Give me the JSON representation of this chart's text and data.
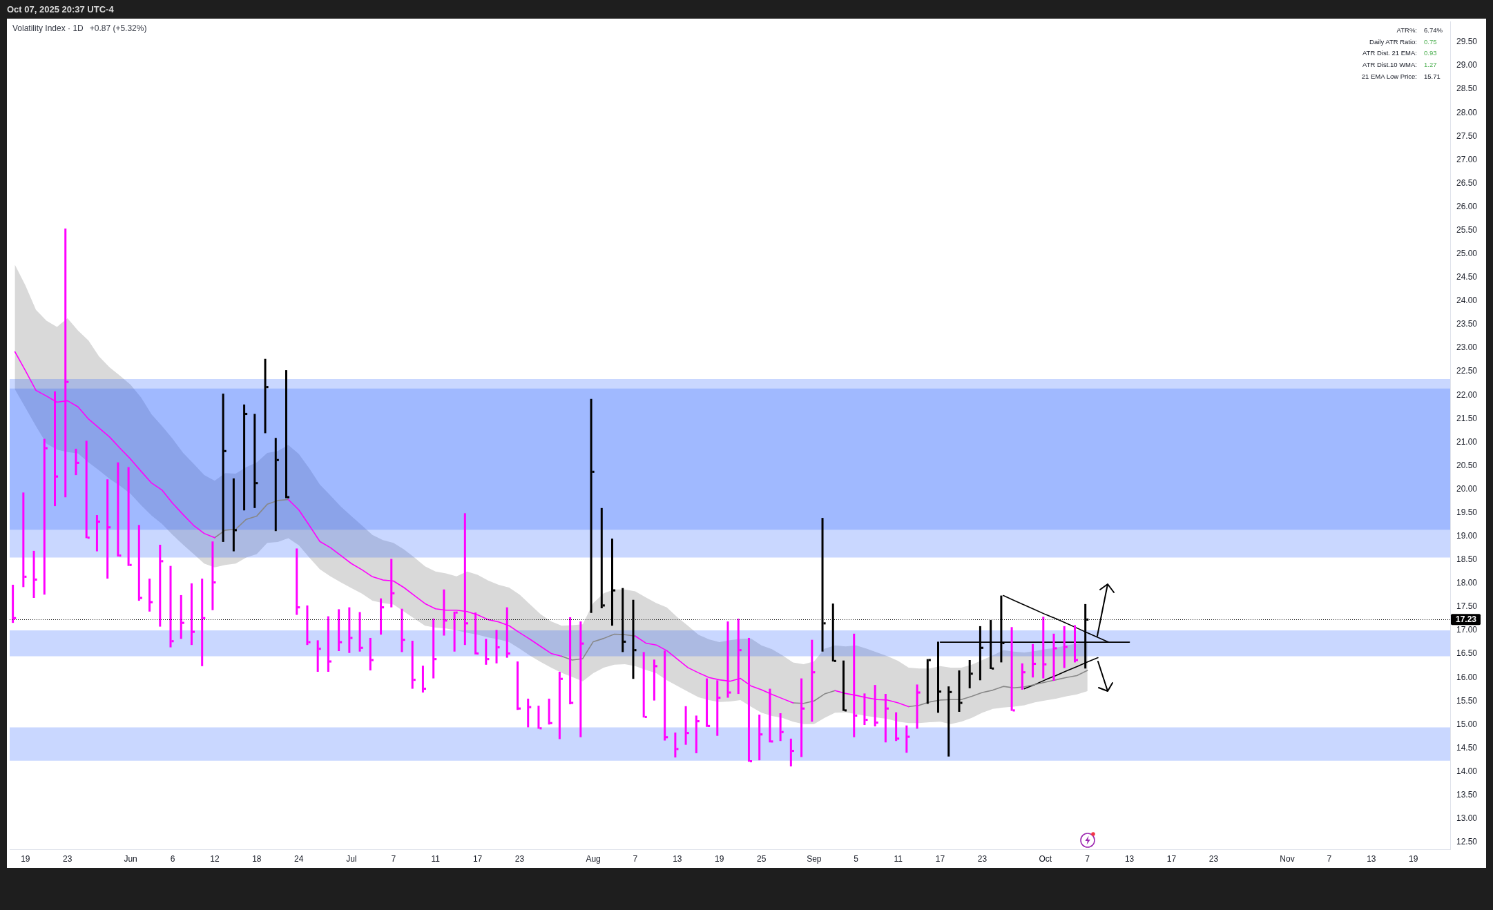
{
  "chart_data": {
    "type": "bar",
    "title": "Volatility Index · 1D",
    "subtitle": "+0.87 (+5.32%)",
    "annotations": [
      "Oct 07, 2025 20:37 UTC-4",
      "ATR%:",
      "6.74%",
      "Daily ATR Ratio:",
      "0.75",
      "ATR Dist. 21 EMA:",
      "0.93",
      "ATR Dist.10 WMA:",
      "1.27",
      "21 EMA Low Price:",
      "15.71"
    ],
    "categories": [
      null,
      "19",
      null,
      null,
      null,
      "23",
      null,
      null,
      null,
      null,
      null,
      "Jun",
      null,
      null,
      null,
      "6",
      null,
      null,
      null,
      "12",
      null,
      null,
      null,
      "18",
      null,
      null,
      null,
      "24",
      null,
      null,
      null,
      null,
      "Jul",
      null,
      null,
      null,
      "7",
      null,
      null,
      null,
      "11",
      null,
      null,
      null,
      "17",
      null,
      null,
      null,
      "23",
      null,
      null,
      null,
      null,
      null,
      null,
      "Aug",
      null,
      null,
      null,
      "7",
      null,
      null,
      null,
      "13",
      null,
      null,
      null,
      "19",
      null,
      null,
      null,
      "25",
      null,
      null,
      null,
      null,
      "Sep",
      null,
      null,
      null,
      "5",
      null,
      null,
      null,
      "11",
      null,
      null,
      null,
      "17",
      null,
      null,
      null,
      "23",
      null,
      null,
      null,
      null,
      null,
      "Oct",
      null,
      null,
      null,
      "7",
      null,
      null,
      null,
      "13",
      null,
      null,
      null,
      "17",
      null,
      null,
      null,
      "23",
      null,
      null,
      null,
      null,
      null,
      null,
      "Nov",
      null,
      null,
      null,
      "7",
      null,
      null,
      null,
      "13",
      null,
      null,
      null,
      "19",
      null,
      null,
      null
    ],
    "series": [
      {
        "colors": [
          "#ff00ff",
          "#ff00ff",
          "#ff00ff",
          "#ff00ff",
          "#ff00ff",
          "#ff00ff",
          "#ff00ff",
          "#ff00ff",
          "#ff00ff",
          "#ff00ff",
          "#ff00ff",
          "#ff00ff",
          "#ff00ff",
          "#ff00ff",
          "#ff00ff",
          "#ff00ff",
          "#ff00ff",
          "#ff00ff",
          "#ff00ff",
          "#ff00ff",
          "#000000",
          "#000000",
          "#000000",
          "#000000",
          "#000000",
          "#000000",
          "#000000",
          "#ff00ff",
          "#ff00ff",
          "#ff00ff",
          "#ff00ff",
          "#ff00ff",
          "#ff00ff",
          "#ff00ff",
          "#ff00ff",
          "#ff00ff",
          "#ff00ff",
          "#ff00ff",
          "#ff00ff",
          "#ff00ff",
          "#ff00ff",
          "#ff00ff",
          "#ff00ff",
          "#ff00ff",
          "#ff00ff",
          "#ff00ff",
          "#ff00ff",
          "#ff00ff",
          "#ff00ff",
          "#ff00ff",
          "#ff00ff",
          "#ff00ff",
          "#ff00ff",
          "#ff00ff",
          "#ff00ff",
          "#000000",
          "#000000",
          "#000000",
          "#000000",
          "#000000",
          "#ff00ff",
          "#ff00ff",
          "#ff00ff",
          "#ff00ff",
          "#ff00ff",
          "#ff00ff",
          "#ff00ff",
          "#ff00ff",
          "#ff00ff",
          "#ff00ff",
          "#ff00ff",
          "#ff00ff",
          "#ff00ff",
          "#ff00ff",
          "#ff00ff",
          "#ff00ff",
          "#ff00ff",
          "#000000",
          "#000000",
          "#000000",
          "#ff00ff",
          "#ff00ff",
          "#ff00ff",
          "#ff00ff",
          "#ff00ff",
          "#ff00ff",
          "#ff00ff",
          "#000000",
          "#000000",
          "#000000",
          "#000000",
          "#000000",
          "#000000",
          "#000000",
          "#000000",
          "#ff00ff",
          "#ff00ff",
          "#ff00ff",
          "#ff00ff",
          "#ff00ff",
          "#ff00ff",
          "#ff00ff",
          "#000000",
          null,
          null,
          null,
          null,
          null,
          null,
          null,
          null,
          null,
          null,
          null,
          null,
          null,
          null,
          null,
          null,
          null,
          null,
          null,
          null,
          null,
          null,
          null,
          null,
          null,
          null,
          null,
          null,
          null,
          null,
          null,
          null,
          null,
          null
        ],
        "base": [
          17.16,
          17.92,
          17.69,
          17.76,
          19.64,
          19.83,
          20.3,
          18.96,
          18.68,
          18.1,
          18.57,
          18.37,
          17.63,
          17.4,
          17.08,
          16.64,
          16.82,
          16.69,
          16.24,
          17.43,
          18.88,
          18.68,
          19.55,
          19.6,
          21.19,
          19.11,
          19.81,
          17.33,
          16.69,
          16.12,
          16.12,
          16.56,
          16.52,
          16.55,
          16.15,
          16.91,
          17.49,
          16.54,
          15.76,
          15.68,
          15.98,
          16.89,
          16.55,
          16.69,
          16.49,
          16.27,
          16.3,
          16.42,
          15.31,
          14.94,
          14.91,
          15.0,
          14.69,
          15.43,
          14.73,
          17.37,
          17.47,
          17.1,
          16.54,
          15.97,
          15.15,
          15.51,
          14.66,
          14.3,
          14.57,
          14.39,
          14.95,
          14.76,
          15.57,
          15.65,
          14.21,
          14.24,
          14.62,
          14.65,
          14.11,
          14.31,
          15.06,
          16.55,
          16.34,
          15.29,
          14.73,
          14.99,
          14.96,
          14.62,
          14.65,
          14.4,
          14.91,
          15.44,
          15.25,
          14.32,
          15.27,
          15.77,
          15.94,
          16.18,
          16.32,
          15.29,
          15.74,
          16.0,
          15.98,
          15.93,
          16.2,
          16.32,
          16.19,
          null,
          null,
          null,
          null,
          null,
          null,
          null,
          null,
          null,
          null,
          null,
          null,
          null,
          null,
          null,
          null,
          null,
          null,
          null,
          null,
          null,
          null,
          null,
          null,
          null,
          null,
          null,
          null,
          null,
          null,
          null,
          null,
          null,
          null
        ],
        "values": [
          0.81,
          2.01,
          1.0,
          3.31,
          2.44,
          5.71,
          0.56,
          2.07,
          0.77,
          2.11,
          2.0,
          2.1,
          1.61,
          0.7,
          1.74,
          1.73,
          0.93,
          1.31,
          1.86,
          1.46,
          3.15,
          1.55,
          2.25,
          2.0,
          1.58,
          1.98,
          2.72,
          1.41,
          0.84,
          0.67,
          1.18,
          0.89,
          0.97,
          0.84,
          0.69,
          0.77,
          1.03,
          0.92,
          1.02,
          0.57,
          1.27,
          0.98,
          0.85,
          2.8,
          0.89,
          0.55,
          0.71,
          1.07,
          1.03,
          0.61,
          0.49,
          0.55,
          1.43,
          1.85,
          2.46,
          4.55,
          2.13,
          1.85,
          1.36,
          1.68,
          1.39,
          0.87,
          1.91,
          0.53,
          0.82,
          0.8,
          1.03,
          1.18,
          1.62,
          1.6,
          2.63,
          0.97,
          1.14,
          0.59,
          0.59,
          1.67,
          1.74,
          2.84,
          1.23,
          1.07,
          2.2,
          0.67,
          0.88,
          1.03,
          0.61,
          0.58,
          0.94,
          0.95,
          1.51,
          1.49,
          0.88,
          0.6,
          1.15,
          1.04,
          1.42,
          1.78,
          0.56,
          0.71,
          1.31,
          1.0,
          0.89,
          0.79,
          1.37,
          null,
          null,
          null,
          null,
          null,
          null,
          null,
          null,
          null,
          null,
          null,
          null,
          null,
          null,
          null,
          null,
          null,
          null,
          null,
          null,
          null,
          null,
          null,
          null,
          null,
          null,
          null,
          null,
          null,
          null,
          null,
          null,
          null,
          null
        ]
      },
      {
        "type": "scatter",
        "marker": "square",
        "color": "#ff00ff",
        "values": [
          17.26,
          18.14,
          18.08,
          20.87,
          20.27,
          22.28,
          20.56,
          18.97,
          19.31,
          19.19,
          18.59,
          18.39,
          17.69,
          17.6,
          18.47,
          16.77,
          17.16,
          16.97,
          17.26,
          18.02,
          null,
          null,
          null,
          null,
          null,
          null,
          null,
          17.49,
          16.75,
          16.61,
          16.34,
          16.75,
          16.84,
          16.63,
          16.37,
          17.49,
          17.79,
          16.8,
          15.95,
          15.76,
          16.39,
          17.21,
          17.38,
          17.15,
          16.51,
          16.39,
          16.64,
          16.51,
          15.34,
          15.37,
          14.92,
          15.03,
          15.97,
          15.46,
          16.72,
          null,
          null,
          null,
          null,
          null,
          15.16,
          16.24,
          14.73,
          14.48,
          14.82,
          15.07,
          14.97,
          15.57,
          15.68,
          16.58,
          14.22,
          14.79,
          14.64,
          14.84,
          14.44,
          15.34,
          16.11,
          null,
          null,
          null,
          15.19,
          15.1,
          15.04,
          15.34,
          14.7,
          14.74,
          15.68,
          null,
          null,
          null,
          null,
          null,
          null,
          null,
          null,
          15.3,
          16.11,
          16.29,
          16.28,
          16.62,
          16.65,
          16.37,
          null,
          null,
          null,
          null,
          null,
          null,
          null,
          null,
          null,
          null,
          null,
          null,
          null,
          null,
          null,
          null,
          null,
          null,
          null,
          null,
          null,
          null,
          null,
          null,
          null,
          null,
          null,
          null,
          null,
          null,
          null,
          null,
          null,
          null,
          null
        ]
      },
      {
        "type": "scatter",
        "marker": "square",
        "color": "#000000",
        "values": [
          null,
          null,
          null,
          null,
          null,
          null,
          null,
          null,
          null,
          null,
          null,
          null,
          null,
          null,
          null,
          null,
          null,
          null,
          null,
          null,
          20.81,
          19.13,
          21.6,
          20.13,
          22.17,
          20.62,
          19.83,
          null,
          null,
          null,
          null,
          null,
          null,
          null,
          null,
          null,
          null,
          null,
          null,
          null,
          null,
          null,
          null,
          null,
          null,
          null,
          null,
          null,
          null,
          null,
          null,
          null,
          null,
          null,
          null,
          20.37,
          17.53,
          17.85,
          16.76,
          16.58,
          null,
          null,
          null,
          null,
          null,
          null,
          null,
          null,
          null,
          null,
          null,
          null,
          null,
          null,
          null,
          null,
          null,
          17.15,
          16.35,
          15.3,
          null,
          null,
          null,
          null,
          null,
          null,
          null,
          16.37,
          15.7,
          15.69,
          15.46,
          16.08,
          16.63,
          16.19,
          16.73,
          null,
          null,
          null,
          null,
          null,
          null,
          null,
          17.23,
          null,
          null,
          null,
          null,
          null,
          null,
          null,
          null,
          null,
          null,
          null,
          null,
          null,
          null,
          null,
          null,
          null,
          null,
          null,
          null,
          null,
          null,
          null,
          null,
          null,
          null,
          null,
          null,
          null,
          null,
          null,
          null,
          null,
          null
        ]
      },
      {
        "type": "line",
        "color": "#ff00ff",
        "values": [
          22.92,
          22.52,
          22.1,
          21.98,
          21.85,
          21.88,
          21.75,
          21.49,
          21.3,
          21.11,
          20.87,
          20.64,
          20.38,
          20.13,
          19.98,
          19.7,
          19.46,
          19.23,
          19.06,
          18.97,
          null,
          null,
          null,
          null,
          null,
          null,
          19.78,
          19.56,
          19.23,
          18.89,
          18.76,
          18.59,
          18.42,
          18.29,
          18.14,
          18.07,
          18.05,
          17.91,
          17.74,
          17.57,
          17.46,
          17.43,
          17.43,
          17.4,
          17.33,
          17.23,
          17.18,
          17.1,
          16.95,
          16.81,
          16.66,
          16.51,
          16.45,
          null,
          null,
          null,
          null,
          null,
          null,
          16.88,
          16.73,
          16.69,
          16.57,
          16.39,
          16.21,
          16.1,
          16.0,
          15.95,
          15.92,
          15.98,
          15.82,
          15.74,
          15.64,
          15.55,
          15.46,
          null,
          null,
          null,
          15.72,
          15.66,
          15.62,
          15.57,
          15.53,
          15.52,
          15.46,
          15.38,
          null,
          null,
          null,
          null,
          null,
          null,
          null,
          null,
          null,
          null,
          null,
          null,
          null,
          null,
          null,
          null,
          null,
          null,
          null,
          null,
          null,
          null,
          null,
          null,
          null,
          null,
          null,
          null,
          null,
          null,
          null,
          null,
          null,
          null,
          null,
          null,
          null,
          null,
          null,
          null,
          null,
          null,
          null,
          null,
          null,
          null,
          null,
          null,
          null,
          null,
          null
        ],
        "lower": [
          22.12,
          21.73,
          21.34,
          20.97,
          20.84,
          20.79,
          20.76,
          20.57,
          20.4,
          20.22,
          20.07,
          19.9,
          19.66,
          19.44,
          19.26,
          19.03,
          18.82,
          18.62,
          18.42,
          18.34,
          18.39,
          18.42,
          18.55,
          18.62,
          18.86,
          18.88,
          18.96,
          18.81,
          18.55,
          18.3,
          18.15,
          18.02,
          17.9,
          17.78,
          17.63,
          17.58,
          17.55,
          17.4,
          17.25,
          17.1,
          17.06,
          17.04,
          17.0,
          16.95,
          16.91,
          16.85,
          16.81,
          16.75,
          16.61,
          16.46,
          16.33,
          16.21,
          16.1,
          16.01,
          15.92,
          16.09,
          16.21,
          16.27,
          16.28,
          16.24,
          16.16,
          16.09,
          15.94,
          15.82,
          15.7,
          15.58,
          15.52,
          15.48,
          15.49,
          15.52,
          15.38,
          15.25,
          15.18,
          15.14,
          15.06,
          15.01,
          15.01,
          15.14,
          15.25,
          15.26,
          15.22,
          15.18,
          15.15,
          15.12,
          15.06,
          15.03,
          15.03,
          15.05,
          15.06,
          15.01,
          15.06,
          15.14,
          15.25,
          15.33,
          15.36,
          15.38,
          15.41,
          15.47,
          15.51,
          15.55,
          15.6,
          15.64,
          15.71,
          null,
          null,
          null,
          null,
          null,
          null,
          null,
          null,
          null,
          null,
          null,
          null,
          null,
          null,
          null,
          null,
          null,
          null,
          null,
          null,
          null,
          null,
          null,
          null,
          null,
          null,
          null,
          null,
          null,
          null,
          null,
          null,
          null,
          null
        ],
        "upper": [
          24.77,
          24.33,
          23.81,
          23.58,
          23.45,
          23.63,
          23.37,
          23.16,
          22.82,
          22.59,
          22.41,
          22.22,
          21.95,
          21.59,
          21.34,
          21.07,
          20.77,
          20.54,
          20.3,
          20.18,
          20.34,
          20.33,
          20.47,
          20.57,
          20.77,
          20.81,
          20.94,
          20.75,
          20.44,
          20.1,
          19.87,
          19.63,
          19.43,
          19.23,
          19.03,
          18.92,
          18.86,
          18.72,
          18.55,
          18.36,
          18.25,
          18.21,
          18.15,
          18.25,
          18.18,
          18.06,
          17.97,
          17.91,
          17.76,
          17.55,
          17.34,
          17.19,
          17.1,
          17.11,
          17.13,
          17.58,
          17.79,
          17.87,
          17.87,
          17.83,
          17.7,
          17.58,
          17.49,
          17.28,
          17.1,
          16.91,
          16.81,
          16.75,
          16.79,
          16.82,
          16.83,
          16.68,
          16.6,
          16.47,
          16.32,
          16.28,
          16.34,
          16.61,
          16.68,
          16.66,
          16.68,
          16.61,
          16.53,
          16.45,
          16.35,
          16.21,
          16.19,
          16.19,
          16.24,
          16.21,
          16.21,
          16.27,
          16.37,
          16.47,
          16.58,
          16.55,
          16.53,
          16.56,
          16.6,
          16.63,
          16.68,
          16.72,
          16.77,
          null,
          null,
          null,
          null,
          null,
          null,
          null,
          null,
          null,
          null,
          null,
          null,
          null,
          null,
          null,
          null,
          null,
          null,
          null,
          null,
          null,
          null,
          null,
          null,
          null,
          null,
          null,
          null,
          null,
          null,
          null,
          null,
          null,
          null
        ]
      },
      {
        "type": "line",
        "color": "#888888",
        "values": [
          null,
          null,
          null,
          null,
          null,
          null,
          null,
          null,
          null,
          null,
          null,
          null,
          null,
          null,
          null,
          null,
          null,
          null,
          null,
          18.97,
          19.13,
          19.15,
          19.36,
          19.43,
          19.68,
          19.76,
          19.78,
          null,
          null,
          null,
          null,
          null,
          null,
          null,
          null,
          null,
          null,
          null,
          null,
          null,
          null,
          null,
          null,
          null,
          null,
          null,
          null,
          null,
          null,
          null,
          null,
          null,
          16.45,
          16.37,
          16.4,
          16.76,
          16.83,
          16.92,
          16.91,
          16.88,
          null,
          null,
          null,
          null,
          null,
          null,
          null,
          null,
          null,
          null,
          null,
          null,
          null,
          null,
          15.46,
          15.45,
          15.5,
          15.65,
          15.72,
          null,
          null,
          null,
          null,
          null,
          null,
          15.38,
          15.41,
          15.48,
          15.52,
          15.53,
          15.53,
          15.6,
          15.68,
          15.73,
          15.81,
          15.78,
          15.8,
          15.85,
          15.9,
          15.95,
          16.0,
          16.04,
          16.15,
          null,
          null,
          null,
          null,
          null,
          null,
          null,
          null,
          null,
          null,
          null,
          null,
          null,
          null,
          null,
          null,
          null,
          null,
          null,
          null,
          null,
          null,
          null,
          null,
          null,
          null,
          null,
          null,
          null,
          null,
          null,
          null,
          null,
          null
        ]
      },
      {
        "type": "line",
        "color": "#000000",
        "values": [
          null,
          null,
          null,
          null,
          null,
          null,
          null,
          null,
          null,
          null,
          null,
          null,
          null,
          null,
          null,
          null,
          null,
          null,
          null,
          null,
          null,
          null,
          null,
          null,
          null,
          null,
          null,
          null,
          null,
          null,
          null,
          null,
          null,
          null,
          null,
          null,
          null,
          null,
          null,
          null,
          null,
          null,
          null,
          null,
          null,
          null,
          null,
          null,
          null,
          null,
          null,
          null,
          null,
          null,
          null,
          null,
          null,
          null,
          null,
          null,
          null,
          null,
          null,
          null,
          null,
          null,
          null,
          null,
          null,
          null,
          null,
          null,
          null,
          null,
          null,
          null,
          null,
          null,
          null,
          null,
          null,
          null,
          null,
          null,
          null,
          null,
          null,
          null,
          null,
          null,
          null,
          null,
          null,
          null,
          17.74,
          17.64,
          17.54,
          17.44,
          17.34,
          17.25,
          17.15,
          17.05,
          16.95,
          16.85,
          16.75,
          null,
          null,
          null,
          null,
          null,
          null,
          null,
          null,
          null,
          null,
          null,
          null,
          null,
          null,
          null,
          null,
          null,
          null,
          null,
          null,
          null,
          null,
          null,
          null,
          null,
          null,
          null,
          null,
          null,
          null,
          null,
          null
        ]
      },
      {
        "type": "line",
        "color": "#000000",
        "values": [
          null,
          null,
          null,
          null,
          null,
          null,
          null,
          null,
          null,
          null,
          null,
          null,
          null,
          null,
          null,
          null,
          null,
          null,
          null,
          null,
          null,
          null,
          null,
          null,
          null,
          null,
          null,
          null,
          null,
          null,
          null,
          null,
          null,
          null,
          null,
          null,
          null,
          null,
          null,
          null,
          null,
          null,
          null,
          null,
          null,
          null,
          null,
          null,
          null,
          null,
          null,
          null,
          null,
          null,
          null,
          null,
          null,
          null,
          null,
          null,
          null,
          null,
          null,
          null,
          null,
          null,
          null,
          null,
          null,
          null,
          null,
          null,
          null,
          null,
          null,
          null,
          null,
          null,
          null,
          null,
          null,
          null,
          null,
          null,
          null,
          null,
          null,
          null,
          16.75,
          16.75,
          16.75,
          16.75,
          16.75,
          16.75,
          16.75,
          16.75,
          16.75,
          16.75,
          16.75,
          16.75,
          16.75,
          16.75,
          16.75,
          16.75,
          16.75,
          16.75,
          16.75,
          null,
          null,
          null,
          null,
          null,
          null,
          null,
          null,
          null,
          null,
          null,
          null,
          null,
          null,
          null,
          null,
          null,
          null,
          null,
          null,
          null,
          null,
          null,
          null,
          null,
          null,
          null,
          null,
          null,
          null
        ]
      },
      {
        "type": "line",
        "color": "#000000",
        "values": [
          null,
          null,
          null,
          null,
          null,
          null,
          null,
          null,
          null,
          null,
          null,
          null,
          null,
          null,
          null,
          null,
          null,
          null,
          null,
          null,
          null,
          null,
          null,
          null,
          null,
          null,
          null,
          null,
          null,
          null,
          null,
          null,
          null,
          null,
          null,
          null,
          null,
          null,
          null,
          null,
          null,
          null,
          null,
          null,
          null,
          null,
          null,
          null,
          null,
          null,
          null,
          null,
          null,
          null,
          null,
          null,
          null,
          null,
          null,
          null,
          null,
          null,
          null,
          null,
          null,
          null,
          null,
          null,
          null,
          null,
          null,
          null,
          null,
          null,
          null,
          null,
          null,
          null,
          null,
          null,
          null,
          null,
          null,
          null,
          null,
          null,
          null,
          null,
          null,
          null,
          null,
          null,
          null,
          null,
          null,
          null,
          15.76,
          15.85,
          15.95,
          16.04,
          16.14,
          16.23,
          16.33,
          16.42,
          null,
          null,
          null,
          null,
          null,
          null,
          null,
          null,
          null,
          null,
          null,
          null,
          null,
          null,
          null,
          null,
          null,
          null,
          null,
          null,
          null,
          null,
          null,
          null,
          null,
          null,
          null,
          null,
          null,
          null,
          null,
          null,
          null
        ]
      }
    ],
    "ylim": [
      12.35,
      29.94
    ],
    "yticks": [
      {
        "value": 12.5,
        "label": "12.50"
      },
      {
        "value": 13,
        "label": "13.00"
      },
      {
        "value": 13.5,
        "label": "13.50"
      },
      {
        "value": 14,
        "label": "14.00"
      },
      {
        "value": 14.5,
        "label": "14.50"
      },
      {
        "value": 15,
        "label": "15.00"
      },
      {
        "value": 15.5,
        "label": "15.50"
      },
      {
        "value": 16,
        "label": "16.00"
      },
      {
        "value": 16.5,
        "label": "16.50"
      },
      {
        "value": 17,
        "label": "17.00"
      },
      {
        "value": 17.5,
        "label": "17.50"
      },
      {
        "value": 18,
        "label": "18.00"
      },
      {
        "value": 18.5,
        "label": "18.50"
      },
      {
        "value": 19,
        "label": "19.00"
      },
      {
        "value": 19.5,
        "label": "19.50"
      },
      {
        "value": 20,
        "label": "20.00"
      },
      {
        "value": 20.5,
        "label": "20.50"
      },
      {
        "value": 21,
        "label": "21.00"
      },
      {
        "value": 21.5,
        "label": "21.50"
      },
      {
        "value": 22,
        "label": "22.00"
      },
      {
        "value": 22.5,
        "label": "22.50"
      },
      {
        "value": 23,
        "label": "23.00"
      },
      {
        "value": 23.5,
        "label": "23.50"
      },
      {
        "value": 24,
        "label": "24.00"
      },
      {
        "value": 24.5,
        "label": "24.50"
      },
      {
        "value": 25,
        "label": "25.00"
      },
      {
        "value": 25.5,
        "label": "25.50"
      },
      {
        "value": 26,
        "label": "26.00"
      },
      {
        "value": 26.5,
        "label": "26.50"
      },
      {
        "value": 27,
        "label": "27.00"
      },
      {
        "value": 27.5,
        "label": "27.50"
      },
      {
        "value": 28,
        "label": "28.00"
      },
      {
        "value": 28.5,
        "label": "28.50"
      },
      {
        "value": 29,
        "label": "29.00"
      },
      {
        "value": 29.5,
        "label": "29.50"
      }
    ],
    "bands": [
      {
        "axis": "y",
        "from": 18.55,
        "to": 22.14,
        "color": "#c9d7ff"
      },
      {
        "axis": "y",
        "from": 19.14,
        "to": 22.34,
        "color": "#c9d7ff"
      },
      {
        "axis": "y",
        "from": 16.45,
        "to": 17.0,
        "color": "#c9d7ff"
      },
      {
        "axis": "y",
        "from": 14.23,
        "to": 14.94,
        "color": "#c9d7ff"
      }
    ],
    "ref_lines": [
      {
        "axis": "y",
        "value": 17.23,
        "label": "17.23",
        "color": "#000000",
        "line_style": "dotted"
      }
    ],
    "grid": false,
    "legend": false
  }
}
